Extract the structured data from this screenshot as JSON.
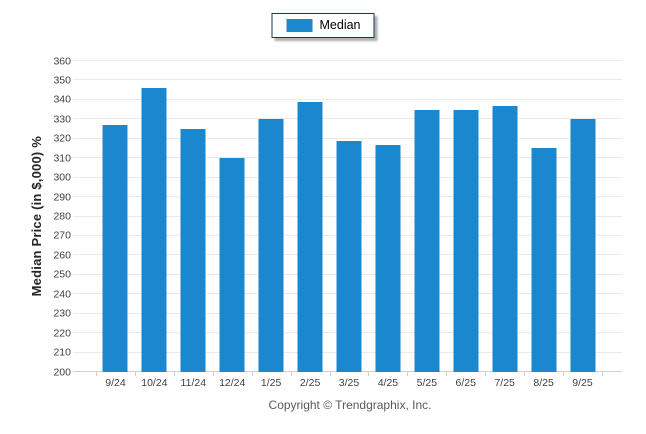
{
  "legend": {
    "items": [
      {
        "label": "Median",
        "color": "#1b87ce"
      }
    ]
  },
  "footer": {
    "copyright": "Copyright © Trendgraphix, Inc."
  },
  "chart_data": {
    "type": "bar",
    "title": "",
    "categories": [
      "9/24",
      "10/24",
      "11/24",
      "12/24",
      "1/25",
      "2/25",
      "3/25",
      "4/25",
      "5/25",
      "6/25",
      "7/25",
      "8/25",
      "9/25"
    ],
    "series": [
      {
        "name": "Median",
        "color": "#1b87ce",
        "values": [
          327,
          346,
          325,
          310,
          330,
          339,
          319,
          317,
          335,
          335,
          337,
          315,
          330
        ]
      }
    ],
    "xlabel": "",
    "ylabel": "Median Price (in $,000) %",
    "ylim": [
      200,
      360
    ],
    "ytick_step": 10,
    "y_ticks": [
      200,
      210,
      220,
      230,
      240,
      250,
      260,
      270,
      280,
      290,
      300,
      310,
      320,
      330,
      340,
      350,
      360
    ],
    "grid": "horizontal-only",
    "legend_position": "top-center"
  },
  "colors": {
    "bar": "#1b87ce",
    "legend_border": "#17375e",
    "grid_line": "#e9e9e9",
    "axis_line": "#cfcfcf",
    "tick_text": "#404040",
    "axis_title_text": "#262626",
    "copyright_text": "#595959",
    "background": "#ffffff"
  }
}
